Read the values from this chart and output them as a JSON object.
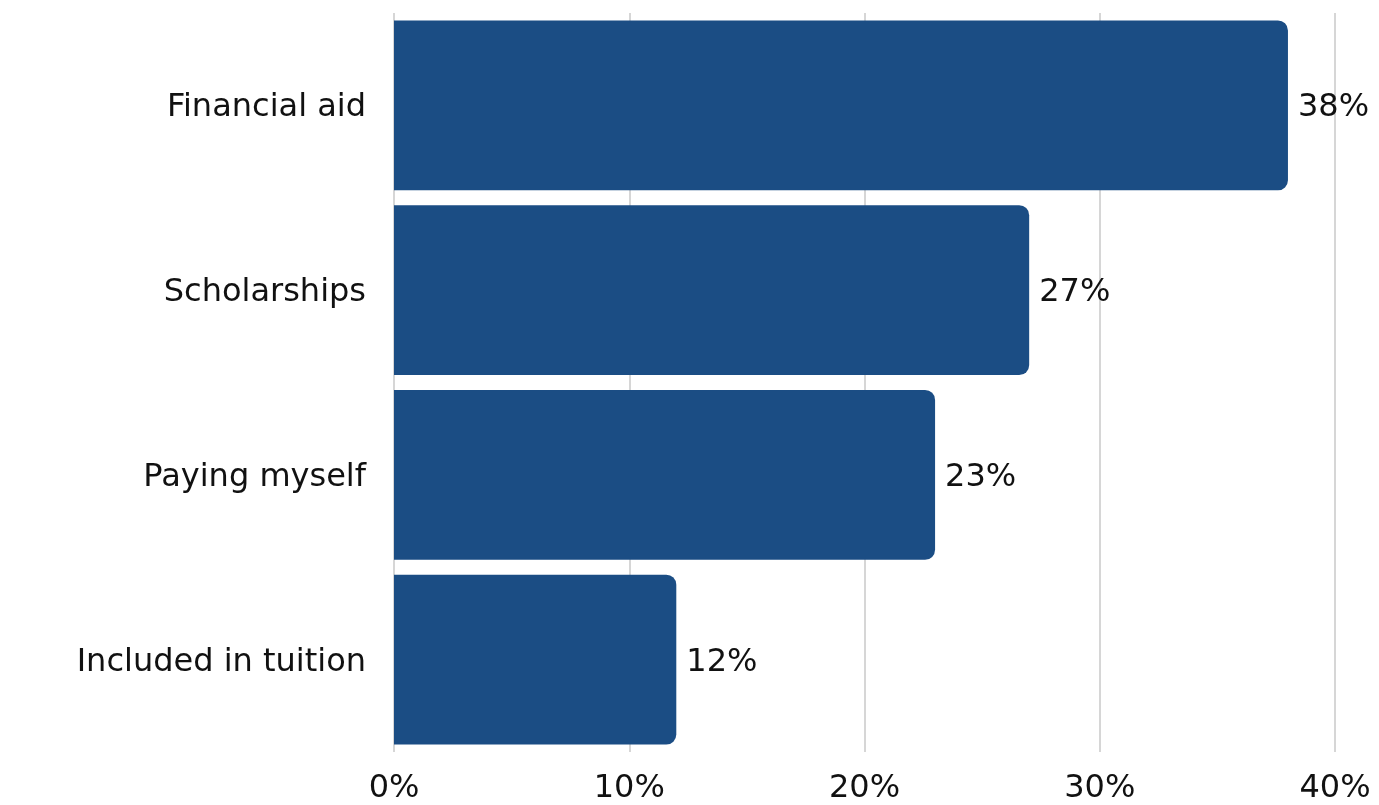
{
  "chart_data": {
    "type": "bar",
    "orientation": "horizontal",
    "categories": [
      "Financial aid",
      "Scholarships",
      "Paying myself",
      "Included in tuition"
    ],
    "values": [
      38,
      27,
      23,
      12
    ],
    "value_labels": [
      "38%",
      "27%",
      "23%",
      "12%"
    ],
    "color": "#1b4d84",
    "xlim": [
      0,
      40
    ],
    "xticks": [
      {
        "value": 0,
        "label": "0%"
      },
      {
        "value": 10,
        "label": "10%"
      },
      {
        "value": 20,
        "label": "20%"
      },
      {
        "value": 30,
        "label": "30%"
      },
      {
        "value": 40,
        "label": "40%"
      }
    ],
    "grid": "x"
  }
}
